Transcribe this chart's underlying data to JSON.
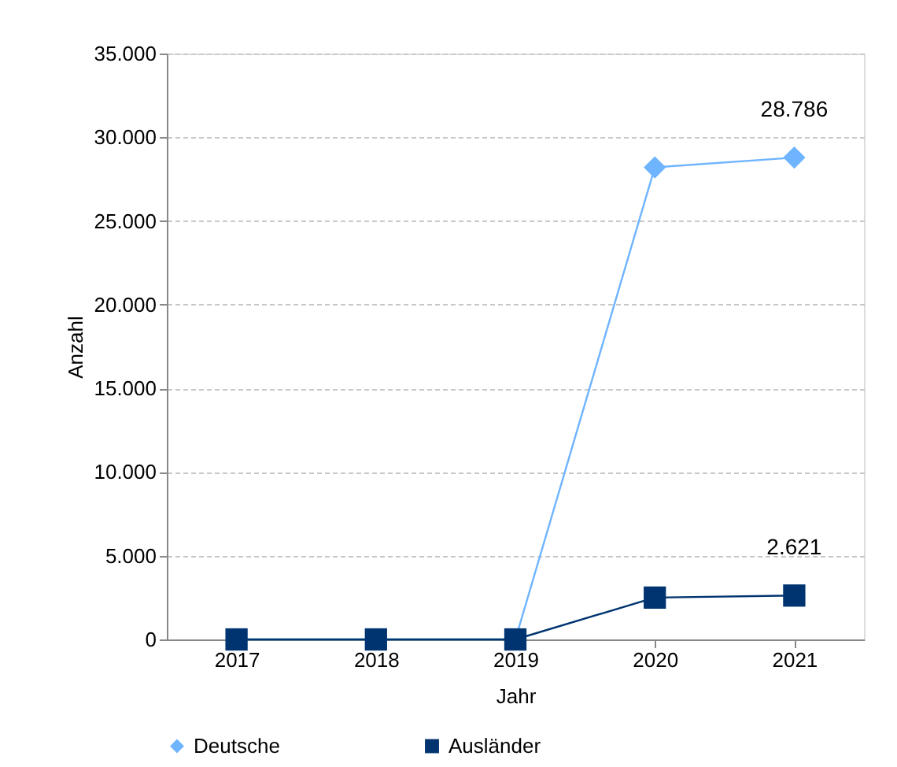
{
  "chart_data": {
    "type": "line",
    "xlabel": "Jahr",
    "ylabel": "Anzahl",
    "categories": [
      "2017",
      "2018",
      "2019",
      "2020",
      "2021"
    ],
    "series": [
      {
        "name": "Deutsche",
        "color": "#6eb4ff",
        "marker": "diamond",
        "values": [
          0,
          0,
          0,
          28200,
          28786
        ],
        "value_labels": [
          null,
          null,
          null,
          null,
          "28.786"
        ]
      },
      {
        "name": "Ausländer",
        "color": "#003470",
        "marker": "square",
        "values": [
          0,
          0,
          0,
          2500,
          2621
        ],
        "value_labels": [
          null,
          null,
          null,
          null,
          "2.621"
        ]
      }
    ],
    "ylim": [
      0,
      35000
    ],
    "yticks": [
      {
        "value": 0,
        "label": "0"
      },
      {
        "value": 5000,
        "label": "5.000"
      },
      {
        "value": 10000,
        "label": "10.000"
      },
      {
        "value": 15000,
        "label": "15.000"
      },
      {
        "value": 20000,
        "label": "20.000"
      },
      {
        "value": 25000,
        "label": "25.000"
      },
      {
        "value": 30000,
        "label": "30.000"
      },
      {
        "value": 35000,
        "label": "35.000"
      }
    ],
    "grid": "y",
    "legend": "bottom",
    "line_style": "solid"
  }
}
